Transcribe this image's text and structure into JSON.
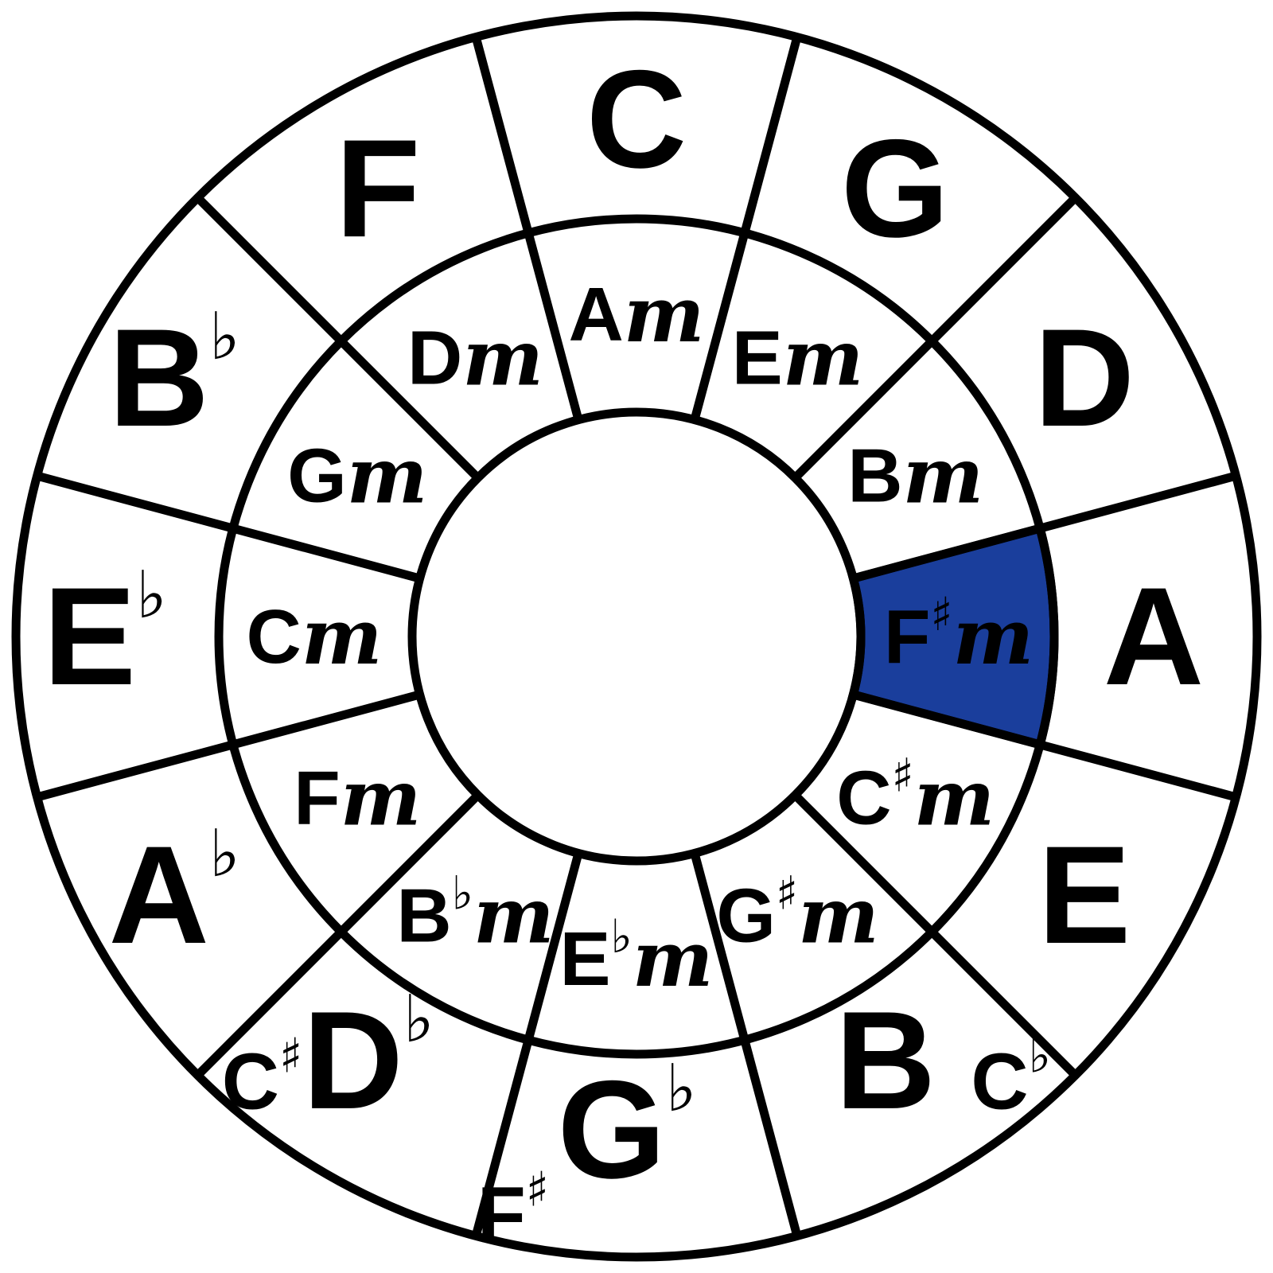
{
  "colors": {
    "line": "#000000",
    "background": "#ffffff",
    "highlight": "#1a3e9c"
  },
  "highlighted_sector": "F#m",
  "major_keys": [
    {
      "root": "C",
      "acc": "",
      "enharmonic": ""
    },
    {
      "root": "G",
      "acc": "",
      "enharmonic": ""
    },
    {
      "root": "D",
      "acc": "",
      "enharmonic": ""
    },
    {
      "root": "A",
      "acc": "",
      "enharmonic": ""
    },
    {
      "root": "E",
      "acc": "",
      "enharmonic": ""
    },
    {
      "root": "B",
      "acc": "",
      "enharmonic": "C",
      "enharmonic_acc": "♭"
    },
    {
      "root": "G",
      "acc": "♭",
      "enharmonic": "F",
      "enharmonic_acc": "♯"
    },
    {
      "root": "D",
      "acc": "♭",
      "enharmonic": "C",
      "enharmonic_acc": "♯"
    },
    {
      "root": "A",
      "acc": "♭",
      "enharmonic": ""
    },
    {
      "root": "E",
      "acc": "♭",
      "enharmonic": ""
    },
    {
      "root": "B",
      "acc": "♭",
      "enharmonic": ""
    },
    {
      "root": "F",
      "acc": "",
      "enharmonic": ""
    }
  ],
  "minor_keys": [
    {
      "root": "A",
      "acc": "",
      "suffix": "m"
    },
    {
      "root": "E",
      "acc": "",
      "suffix": "m"
    },
    {
      "root": "B",
      "acc": "",
      "suffix": "m"
    },
    {
      "root": "F",
      "acc": "♯",
      "suffix": "m"
    },
    {
      "root": "C",
      "acc": "♯",
      "suffix": "m"
    },
    {
      "root": "G",
      "acc": "♯",
      "suffix": "m"
    },
    {
      "root": "E",
      "acc": "♭",
      "suffix": "m"
    },
    {
      "root": "B",
      "acc": "♭",
      "suffix": "m"
    },
    {
      "root": "F",
      "acc": "",
      "suffix": "m"
    },
    {
      "root": "C",
      "acc": "",
      "suffix": "m"
    },
    {
      "root": "G",
      "acc": "",
      "suffix": "m"
    },
    {
      "root": "D",
      "acc": "",
      "suffix": "m"
    }
  ]
}
